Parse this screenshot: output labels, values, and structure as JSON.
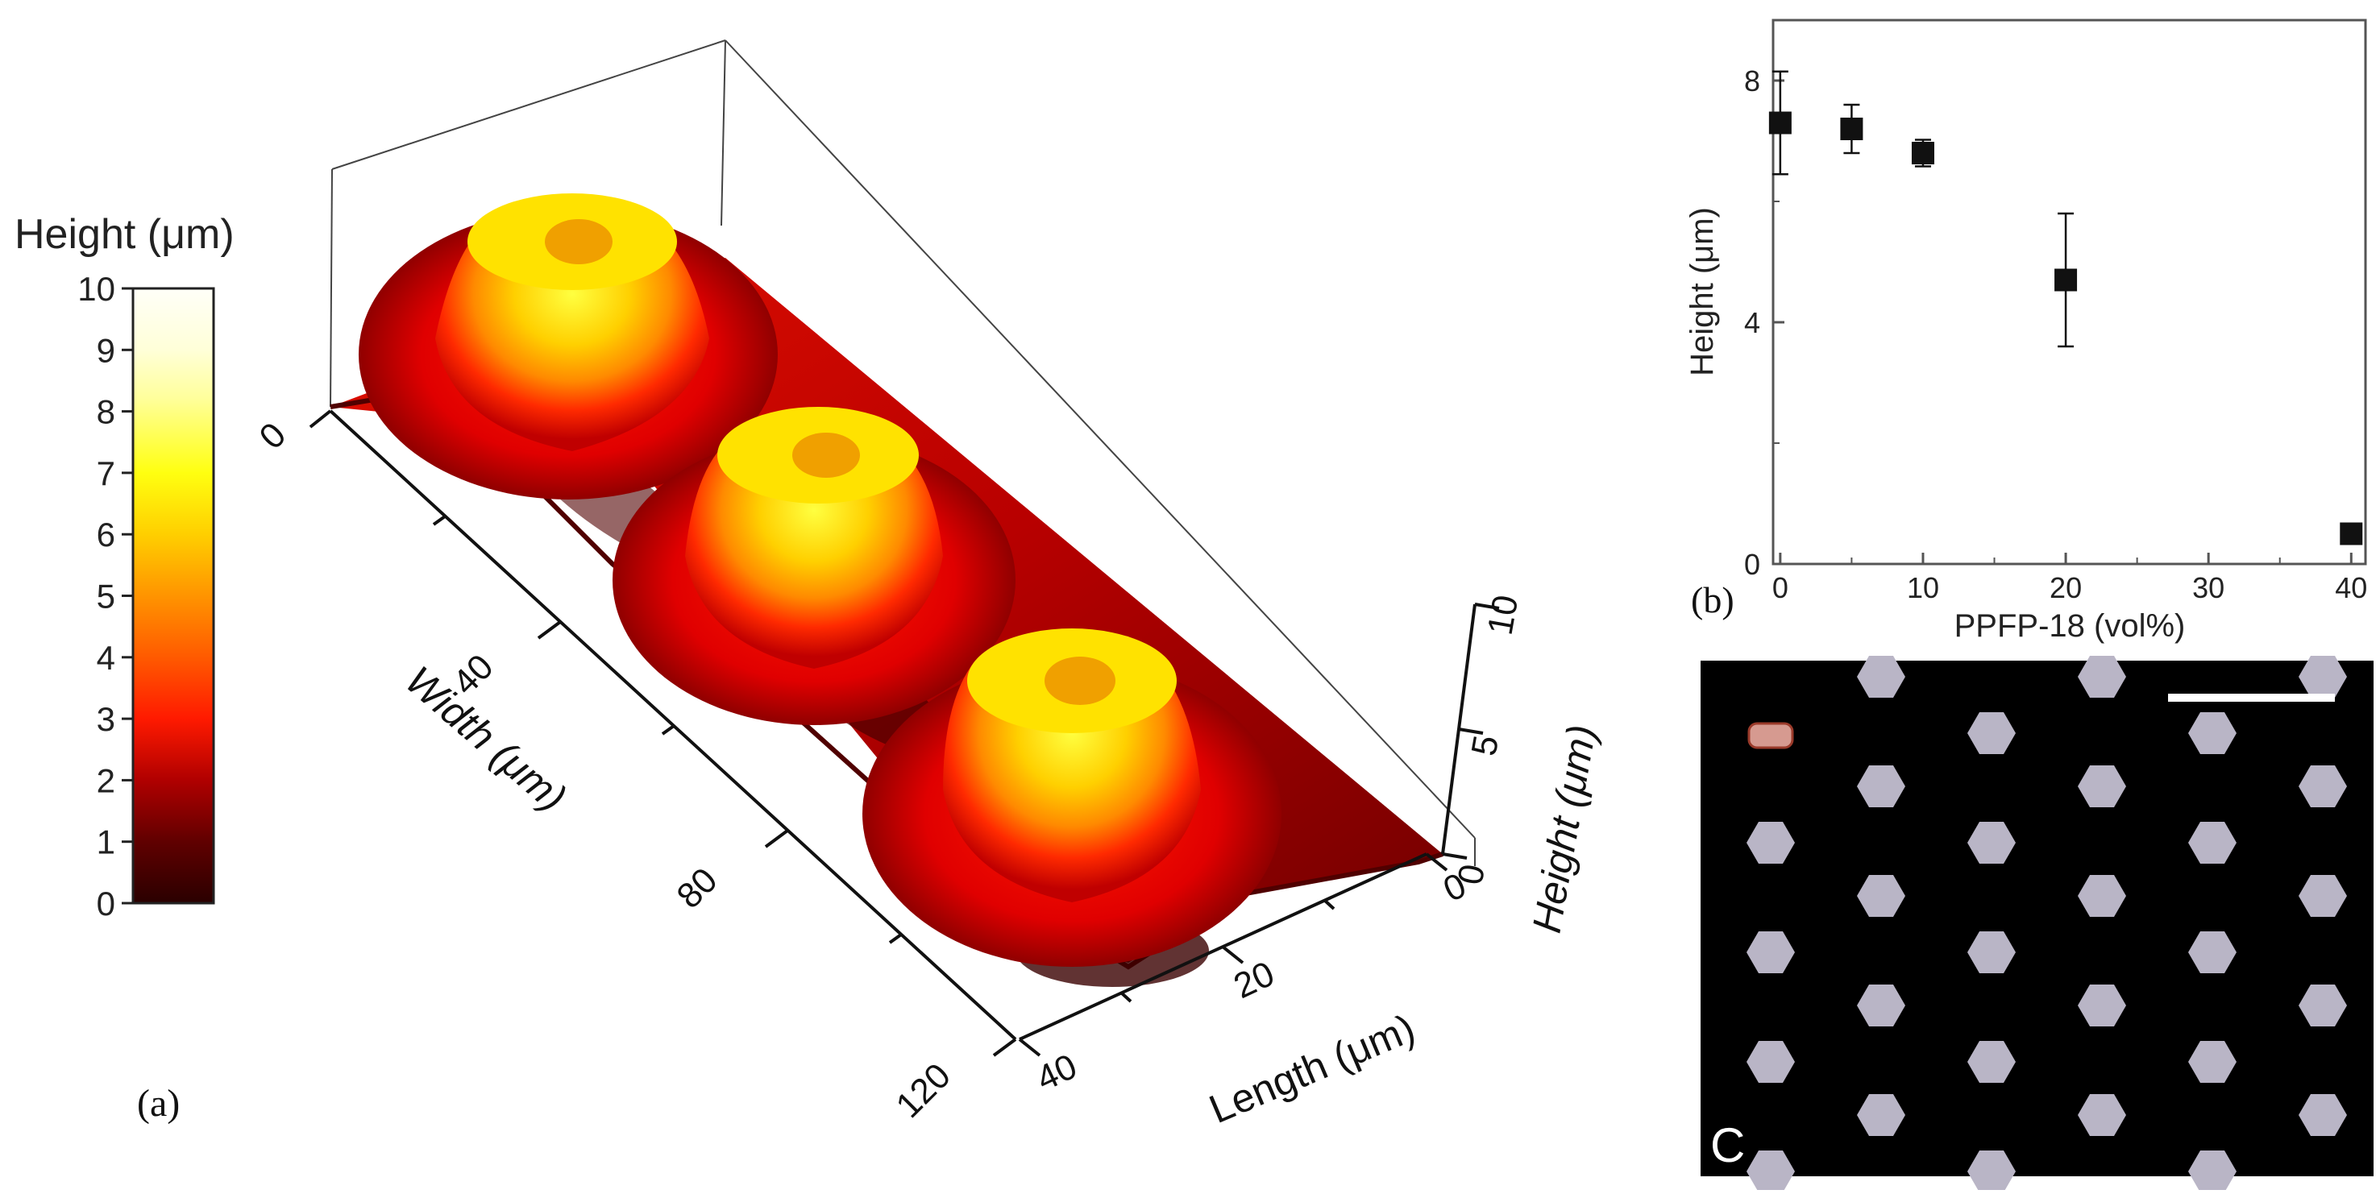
{
  "panel_a": {
    "label": "(a)",
    "colorbar": {
      "title": "Height (μm)",
      "ticks": [
        "0",
        "1",
        "2",
        "3",
        "4",
        "5",
        "6",
        "7",
        "8",
        "9",
        "10"
      ],
      "colors": [
        "#2a0000",
        "#600000",
        "#b00000",
        "#ff1a00",
        "#ff5a00",
        "#ff9400",
        "#ffcf00",
        "#ffff10",
        "#ffff9a",
        "#fffff0"
      ]
    },
    "axes": {
      "width_label": "Width (μm)",
      "width_ticks": [
        "0",
        "40",
        "80",
        "120"
      ],
      "length_label": "Length (μm)",
      "length_ticks": [
        "0",
        "20",
        "40"
      ],
      "height_label": "Height (μm)",
      "height_ticks": [
        "10",
        "5",
        "0"
      ]
    }
  },
  "chart_data": [
    {
      "type": "scatter",
      "title": "",
      "xlabel": "PPFP-18 (vol%)",
      "ylabel": "Height (μm)",
      "xlim": [
        -0.5,
        41
      ],
      "ylim": [
        0,
        9
      ],
      "xticks": [
        0,
        10,
        20,
        30,
        40
      ],
      "yticks": [
        0,
        4,
        8
      ],
      "x": [
        0,
        5,
        10,
        20,
        40
      ],
      "y": [
        7.3,
        7.2,
        6.8,
        4.7,
        0.5
      ],
      "yerr": [
        0.85,
        0.4,
        0.22,
        1.1,
        0.05
      ],
      "marker": "square",
      "grid": false
    }
  ],
  "panel_b": {
    "label": "(b)"
  },
  "panel_c": {
    "label": "C"
  }
}
